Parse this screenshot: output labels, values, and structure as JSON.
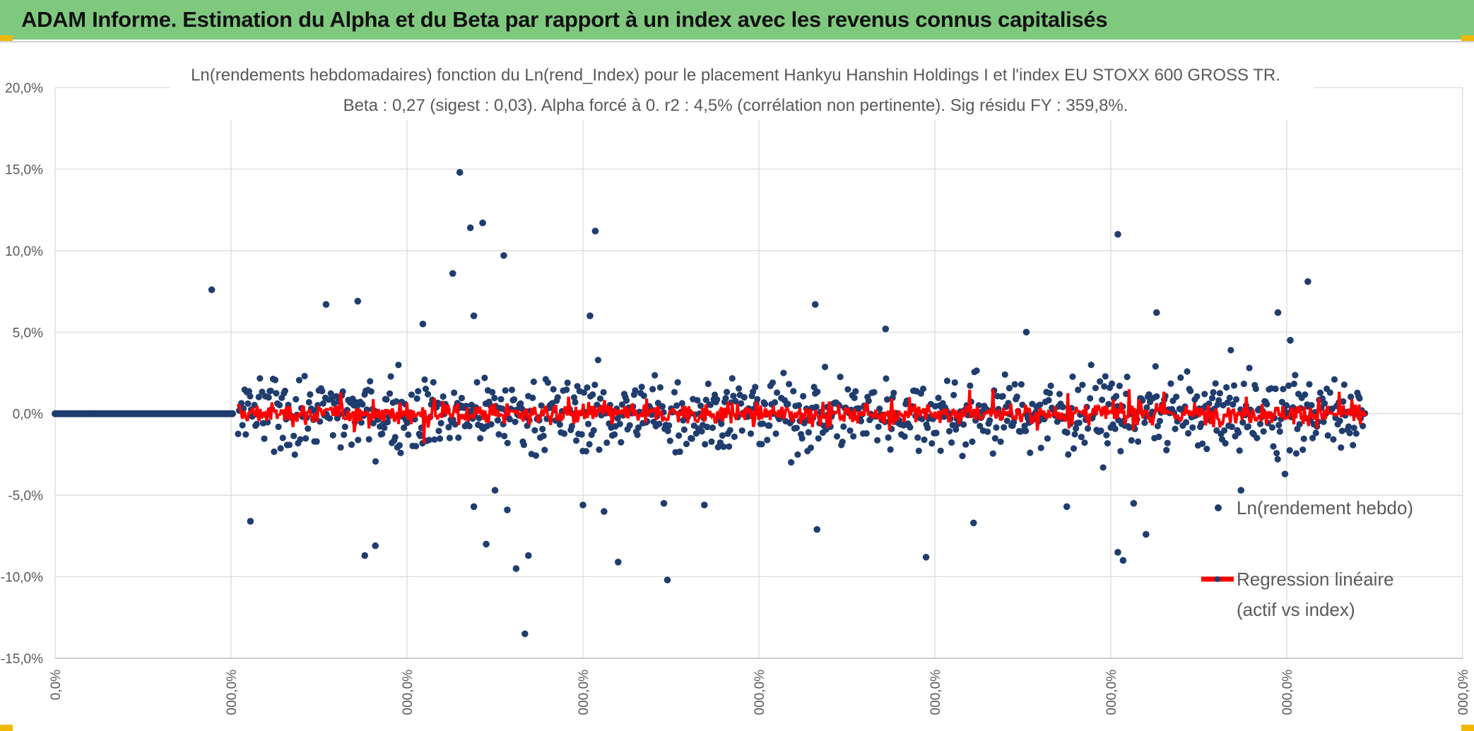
{
  "banner": {
    "title": "ADAM Informe. Estimation du Alpha et du Beta par rapport à un index avec les revenus connus capitalisés"
  },
  "colors": {
    "banner_bg": "#7fc97f",
    "corner_accent": "#f0b800",
    "points": "#1f3d6e",
    "regression": "#ff0000",
    "grid": "#d9d9d9",
    "text": "#595959"
  },
  "chart_data": {
    "type": "scatter",
    "title": "Ln(rendements hebdomadaires) fonction du Ln(rend_Index) pour le placement Hankyu Hanshin Holdings I et l'index EU STOXX 600 GROSS TR.",
    "subtitle": "Beta : 0,27 (sigest : 0,03). Alpha forcé à 0. r2 : 4,5% (corrélation non pertinente). Sig résidu FY : 359,8%.",
    "y_tick_labels": [
      "20,0%",
      "15,0%",
      "10,0%",
      "5,0%",
      "0,0%",
      "-5,0%",
      "-10,0%",
      "-15,0%"
    ],
    "y_range": [
      -15,
      20
    ],
    "y_unit": "%",
    "x_tick_labels": [
      "0,0%",
      "000,0%",
      "000,0%",
      "000,0%",
      "000,0%",
      "000,0%",
      "000,0%",
      "000,0%",
      "000,0%"
    ],
    "x_range": [
      0,
      8
    ],
    "grid": true,
    "legend_position": "right",
    "series": [
      {
        "name": "Ln(rendement hebdo)",
        "kind": "points",
        "color": "#1f3d6e",
        "zero_band": [
          0,
          1.02
        ],
        "points": [
          [
            2.3,
            14.8
          ],
          [
            2.67,
            -13.5
          ],
          [
            2.36,
            11.4
          ],
          [
            2.43,
            11.7
          ],
          [
            3.07,
            11.2
          ],
          [
            6.04,
            11.0
          ],
          [
            2.55,
            9.7
          ],
          [
            2.38,
            6.0
          ],
          [
            2.26,
            8.6
          ],
          [
            0.89,
            7.6
          ],
          [
            1.72,
            6.9
          ],
          [
            6.26,
            6.2
          ],
          [
            4.32,
            6.7
          ],
          [
            7.12,
            8.1
          ],
          [
            1.76,
            -8.7
          ],
          [
            1.11,
            -6.6
          ],
          [
            1.82,
            -8.1
          ],
          [
            2.62,
            -9.5
          ],
          [
            3.48,
            -10.2
          ],
          [
            3.2,
            -9.1
          ],
          [
            4.95,
            -8.8
          ],
          [
            6.04,
            -8.5
          ],
          [
            6.07,
            -9.0
          ],
          [
            6.2,
            -7.4
          ],
          [
            6.13,
            -5.5
          ],
          [
            4.33,
            -7.1
          ],
          [
            2.57,
            -5.9
          ],
          [
            2.69,
            -8.7
          ],
          [
            5.22,
            -6.7
          ],
          [
            3.0,
            -5.6
          ],
          [
            2.38,
            -5.7
          ],
          [
            2.45,
            -8.0
          ],
          [
            2.5,
            -4.7
          ],
          [
            3.12,
            -6.0
          ],
          [
            3.46,
            -5.5
          ],
          [
            3.69,
            -5.6
          ],
          [
            5.75,
            -5.7
          ],
          [
            6.74,
            -4.7
          ],
          [
            6.99,
            -3.7
          ],
          [
            1.54,
            6.7
          ],
          [
            2.09,
            5.5
          ],
          [
            4.72,
            5.2
          ],
          [
            6.95,
            6.2
          ],
          [
            7.02,
            4.5
          ],
          [
            3.04,
            6.0
          ],
          [
            5.52,
            5.0
          ]
        ]
      },
      {
        "name": "Regression linéaire (actif vs index)",
        "kind": "line",
        "color": "#ff0000",
        "slope": 0.27
      }
    ],
    "legend": [
      {
        "label": "Ln(rendement hebdo)",
        "marker": "point"
      },
      {
        "label_lines": [
          "Regression linéaire",
          "(actif vs index)"
        ],
        "marker": "line-point"
      }
    ]
  }
}
